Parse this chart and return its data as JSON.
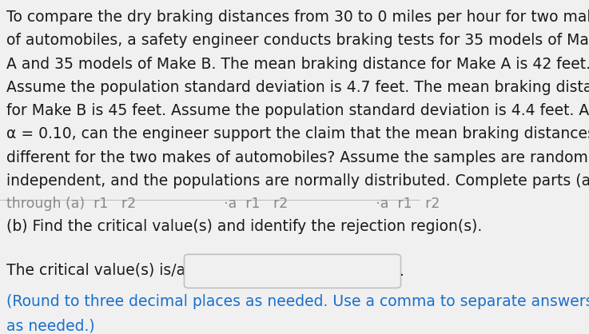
{
  "background_color": "#f0f0f0",
  "content_bg": "#ffffff",
  "part_b_label": "(b) Find the critical value(s) and identify the rejection region(s).",
  "critical_label": "The critical value(s) is/are",
  "hint_line1": "(Round to three decimal places as needed. Use a comma to separate answers",
  "hint_line2": "as needed.)",
  "main_font_size": 13.5,
  "text_color": "#1a1a1a",
  "hint_color": "#1a6fcc",
  "box_color": "#c0c0c0",
  "box_fill": "#f0f0f0"
}
